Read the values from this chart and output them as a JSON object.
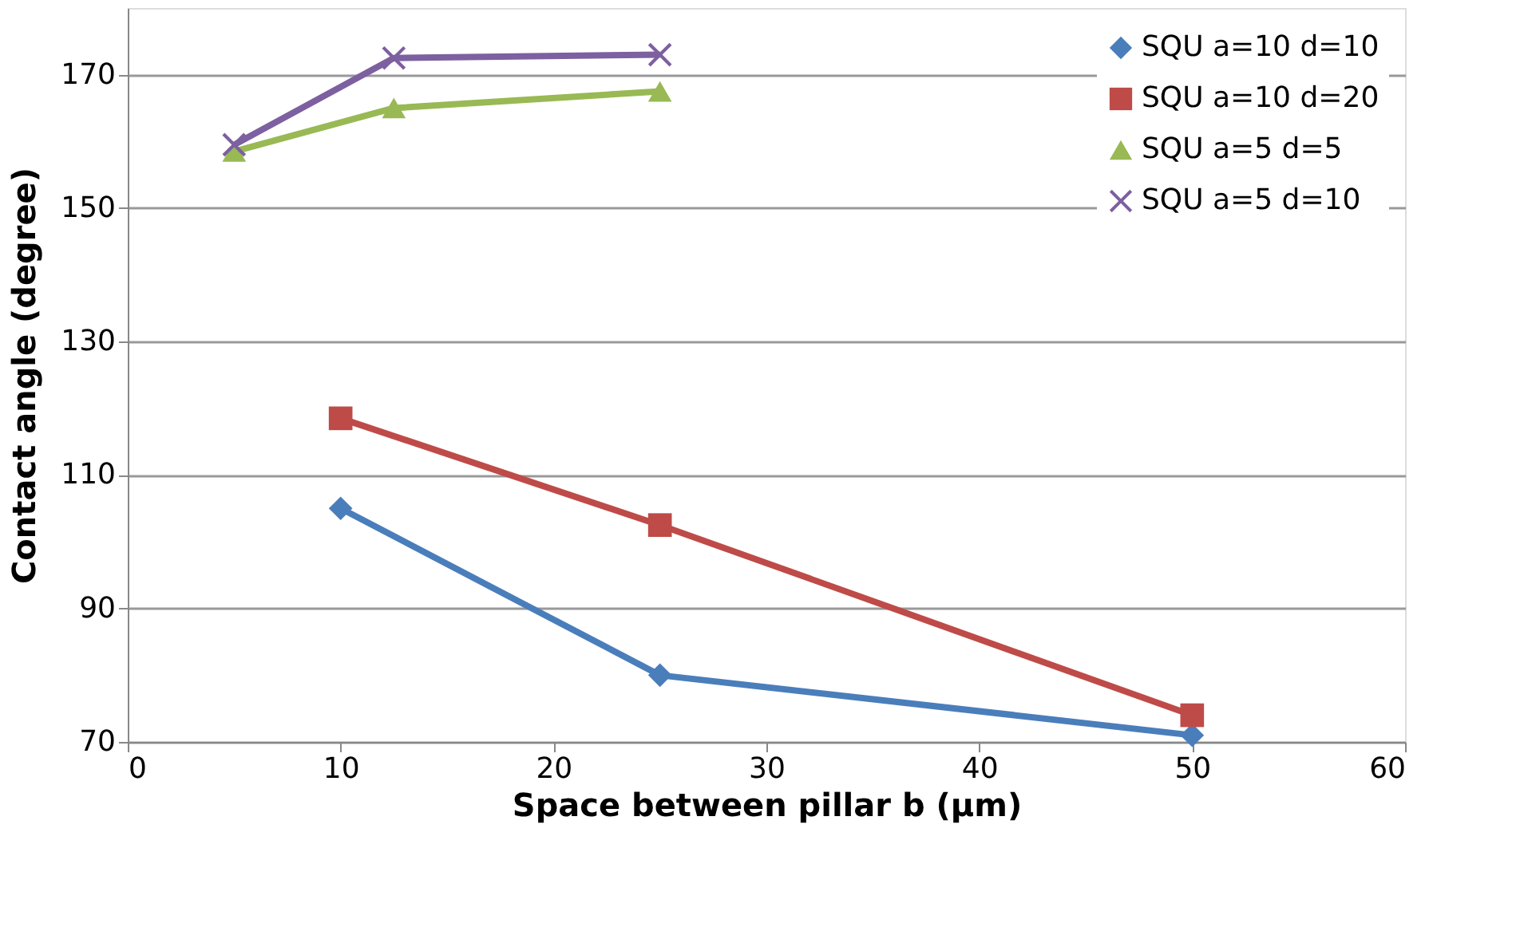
{
  "chart_data": {
    "type": "line",
    "xlabel": "Space between pillar b (µm)",
    "ylabel": "Contact angle (degree)",
    "xlim": [
      0,
      60
    ],
    "xticks": [
      0,
      10,
      20,
      30,
      40,
      50,
      60
    ],
    "ylim": [
      70,
      180
    ],
    "yticks": [
      70,
      90,
      110,
      130,
      150,
      170
    ],
    "grid": "y",
    "legend": "top right",
    "series": [
      {
        "name": "SQU a=10 d=10",
        "color": "#4a7ebb",
        "marker": "diamond",
        "x": [
          10,
          25,
          50
        ],
        "values": [
          105,
          80,
          71
        ]
      },
      {
        "name": "SQU a=10 d=20",
        "color": "#be4b48",
        "marker": "square",
        "x": [
          10,
          25,
          50
        ],
        "values": [
          118.5,
          102.5,
          74
        ]
      },
      {
        "name": "SQU a=5 d=5",
        "color": "#98b954",
        "marker": "triangle",
        "x": [
          5,
          12.5,
          25
        ],
        "values": [
          158.5,
          165,
          167.5
        ]
      },
      {
        "name": "SQU a=5 d=10",
        "color": "#7d60a0",
        "marker": "cross",
        "x": [
          5,
          12.5,
          25
        ],
        "values": [
          159.5,
          172.5,
          173
        ]
      }
    ]
  }
}
